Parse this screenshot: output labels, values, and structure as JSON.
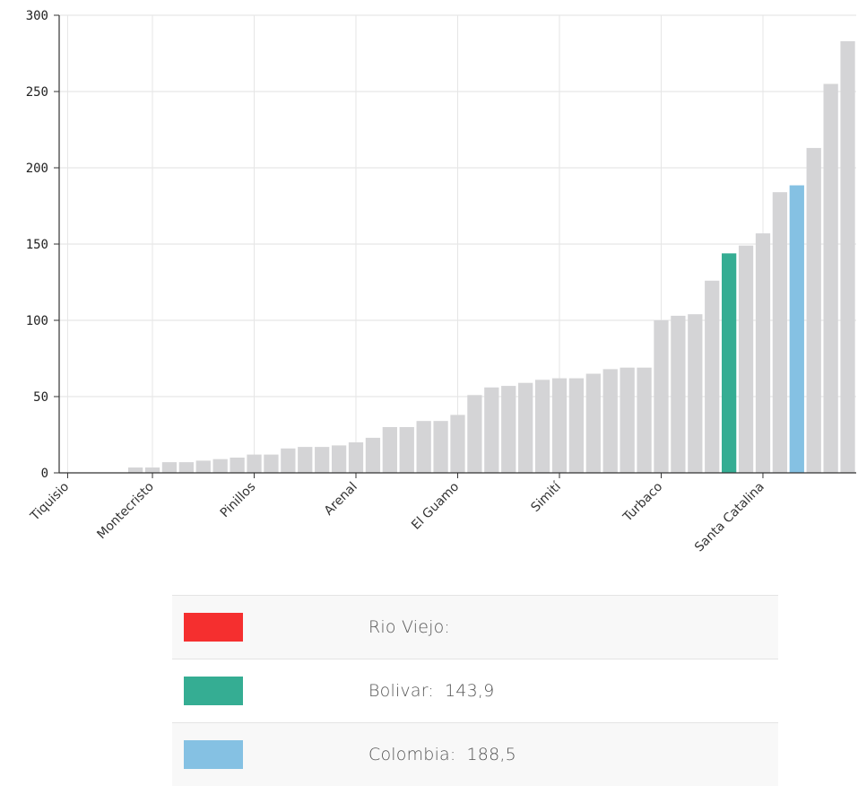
{
  "chart_data": {
    "type": "bar",
    "title": "",
    "xlabel": "",
    "ylabel": "",
    "ylim": [
      0,
      300
    ],
    "yticks": [
      0,
      50,
      100,
      150,
      200,
      250,
      300
    ],
    "grid": true,
    "x_tick_labels": [
      "Tiquisio",
      "Montecristo",
      "Pinillos",
      "Arenal",
      "El Guamo",
      "Simití",
      "Turbaco",
      "Santa Catalina"
    ],
    "x_tick_bar_index": [
      0,
      5,
      11,
      17,
      23,
      29,
      35,
      41
    ],
    "values": [
      0,
      0,
      0,
      0,
      3.5,
      3.5,
      7,
      7,
      8,
      9,
      10,
      12,
      12,
      16,
      17,
      17,
      18,
      20,
      23,
      30,
      30,
      34,
      34,
      38,
      51,
      56,
      57,
      59,
      61,
      62,
      62,
      65,
      68,
      69,
      69,
      100,
      103,
      104,
      126,
      143.9,
      149,
      157,
      184,
      188.5,
      213,
      255,
      283
    ],
    "highlight": {
      "39": "Bolivar",
      "43": "Colombia"
    },
    "colors": {
      "default": "#d4d4d6",
      "Bolivar": "#35ad93",
      "Colombia": "#85c1e3",
      "Rio Viejo": "#f52f2f"
    }
  },
  "legend": [
    {
      "label": "Rio Viejo:",
      "value": "",
      "color": "#f52f2f"
    },
    {
      "label": "Bolivar:",
      "value": "143,9",
      "color": "#35ad93"
    },
    {
      "label": "Colombia:",
      "value": "188,5",
      "color": "#85c1e3"
    }
  ]
}
